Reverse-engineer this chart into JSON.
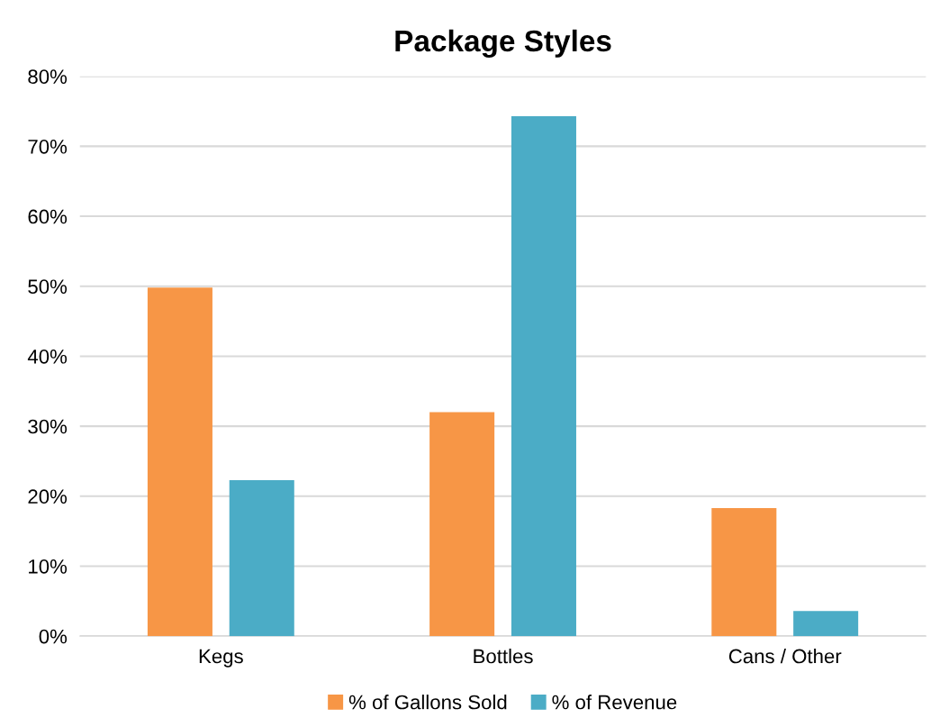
{
  "chart_data": {
    "type": "bar",
    "title": "Package Styles",
    "categories": [
      "Kegs",
      "Bottles",
      "Cans / Other"
    ],
    "series": [
      {
        "name": "% of Gallons Sold",
        "color": "#f79646",
        "values": [
          49.8,
          32.0,
          18.3
        ]
      },
      {
        "name": "% of Revenue",
        "color": "#4bacc6",
        "values": [
          22.3,
          74.3,
          3.6
        ]
      }
    ],
    "ylim": [
      0,
      80
    ],
    "yticks": [
      {
        "value": 0,
        "label": "0%"
      },
      {
        "value": 10,
        "label": "10%"
      },
      {
        "value": 20,
        "label": "20%"
      },
      {
        "value": 30,
        "label": "30%"
      },
      {
        "value": 40,
        "label": "40%"
      },
      {
        "value": 50,
        "label": "50%"
      },
      {
        "value": 60,
        "label": "60%"
      },
      {
        "value": 70,
        "label": "70%"
      },
      {
        "value": 80,
        "label": "80%"
      }
    ],
    "grid": "y",
    "legend": "bottom"
  }
}
